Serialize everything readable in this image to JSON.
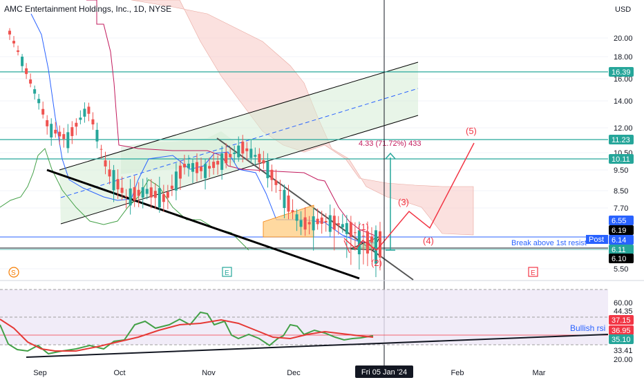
{
  "header": {
    "title": "AMC Entertainment Holdings, Inc., 1D, NYSE",
    "currency": "USD"
  },
  "chart_data": {
    "type": "candlestick",
    "title": "AMC Entertainment Holdings, Inc., 1D, NYSE",
    "currency": "USD",
    "y_ticks": [
      "20.00",
      "18.00",
      "16.00",
      "14.00",
      "12.00",
      "10.50",
      "9.50",
      "8.50",
      "7.70",
      "5.50"
    ],
    "x_ticks": [
      "Sep",
      "Oct",
      "Nov",
      "Dec",
      "Feb",
      "Mar"
    ],
    "crosshair_date": "Fri 05 Jan '24",
    "price_tags": [
      {
        "value": "16.39",
        "color": "#26a69a"
      },
      {
        "value": "11.23",
        "color": "#26a69a"
      },
      {
        "value": "10.11",
        "color": "#26a69a"
      },
      {
        "value": "6.55",
        "color": "#2962ff"
      },
      {
        "value": "6.19",
        "color": "#000000"
      },
      {
        "value": "6.14",
        "color": "#2962ff"
      },
      {
        "value": "6.11",
        "color": "#26a69a"
      },
      {
        "value": "6.10",
        "color": "#000000"
      }
    ],
    "post_label": "Post",
    "horizontal_levels": [
      16.39,
      11.23,
      10.11
    ],
    "measure_label": "4.33 (71.72%) 433",
    "wave_labels": [
      "(1)",
      "(2)",
      "(3)",
      "(4)",
      "(5)"
    ],
    "annotation_breakout": "Break above 1st resist",
    "event_markers": [
      "S",
      "E",
      "E"
    ],
    "candles_approx": [
      {
        "date": "Aug 21",
        "close": 20.5
      },
      {
        "date": "Aug 24",
        "close": 16.0
      },
      {
        "date": "Aug 28",
        "close": 12.0
      },
      {
        "date": "Sep 1",
        "close": 11.3
      },
      {
        "date": "Sep 6",
        "close": 13.5
      },
      {
        "date": "Sep 8",
        "close": 9.5
      },
      {
        "date": "Sep 12",
        "close": 8.2
      },
      {
        "date": "Sep 20",
        "close": 8.5
      },
      {
        "date": "Sep 28",
        "close": 8.1
      },
      {
        "date": "Oct 6",
        "close": 9.8
      },
      {
        "date": "Oct 16",
        "close": 9.5
      },
      {
        "date": "Oct 26",
        "close": 10.1
      },
      {
        "date": "Nov 1",
        "close": 10.8
      },
      {
        "date": "Nov 6",
        "close": 10.0
      },
      {
        "date": "Nov 9",
        "close": 8.3
      },
      {
        "date": "Nov 20",
        "close": 6.8
      },
      {
        "date": "Dec 1",
        "close": 7.0
      },
      {
        "date": "Dec 14",
        "close": 6.8
      },
      {
        "date": "Dec 22",
        "close": 6.2
      },
      {
        "date": "Jan 5",
        "close": 6.1
      }
    ],
    "rsi_panel": {
      "y_ticks": [
        "60.00",
        "44.35",
        "33.41",
        "20.00"
      ],
      "tags": [
        {
          "value": "37.15",
          "color": "#f23645"
        },
        {
          "value": "36.95",
          "color": "#f23645"
        },
        {
          "value": "35.10",
          "color": "#26a69a"
        }
      ],
      "annotation": "Bullish rsi"
    }
  }
}
